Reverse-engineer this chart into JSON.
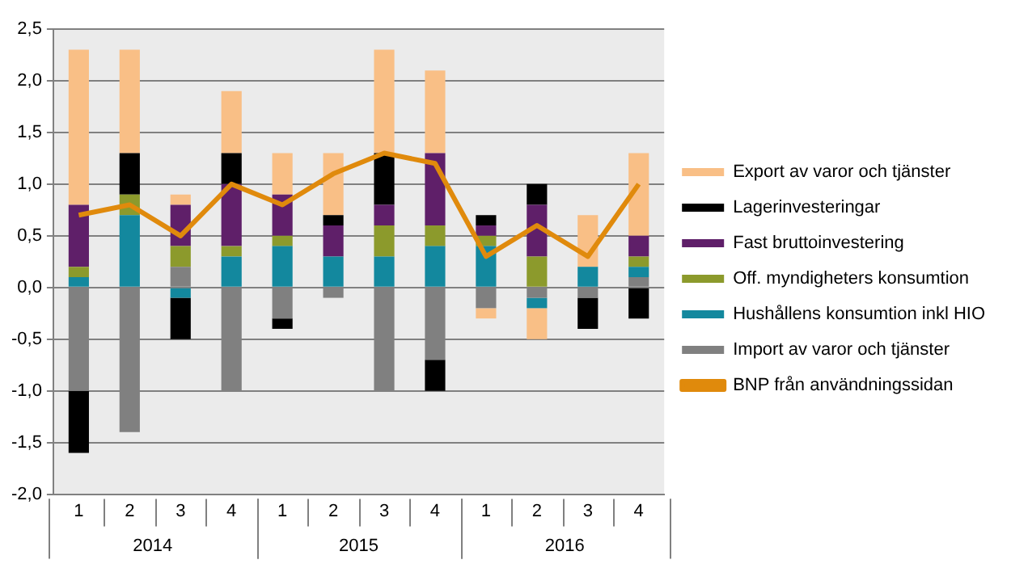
{
  "chart_data": {
    "type": "bar",
    "stacked": true,
    "categories": [
      "1",
      "2",
      "3",
      "4",
      "1",
      "2",
      "3",
      "4",
      "1",
      "2",
      "3",
      "4"
    ],
    "annotations": [
      "2014",
      "2015",
      "2016"
    ],
    "series": [
      {
        "name": "Import av varor och tjänster",
        "color": "#808080",
        "values": [
          -1.0,
          -1.4,
          0.2,
          -1.0,
          -0.3,
          -0.1,
          -1.0,
          -0.7,
          -0.2,
          -0.1,
          -0.1,
          0.1
        ]
      },
      {
        "name": "Hushållens konsumtion inkl HIO",
        "color": "#13889e",
        "values": [
          0.1,
          0.7,
          -0.1,
          0.3,
          0.4,
          0.3,
          0.3,
          0.4,
          0.4,
          -0.1,
          0.2,
          0.1
        ]
      },
      {
        "name": "Off. myndigheters konsumtion",
        "color": "#8c9a2c",
        "values": [
          0.1,
          0.2,
          0.2,
          0.1,
          0.1,
          0,
          0.3,
          0.2,
          0.1,
          0.3,
          0,
          0.1
        ]
      },
      {
        "name": "Fast bruttoinvestering",
        "color": "#5f1f69",
        "values": [
          0.6,
          0,
          0.4,
          0.6,
          0.4,
          0.3,
          0.2,
          0.7,
          0.1,
          0.5,
          0,
          0.2
        ]
      },
      {
        "name": "Lagerinvesteringar",
        "color": "#000000",
        "values": [
          -0.6,
          0.4,
          -0.4,
          0.3,
          -0.1,
          0.1,
          0.5,
          -0.3,
          0.1,
          0.2,
          -0.3,
          -0.3
        ]
      },
      {
        "name": "Export av varor och tjänster",
        "color": "#f9bf86",
        "values": [
          1.5,
          1.0,
          0.1,
          0.6,
          0.4,
          0.6,
          1.0,
          0.8,
          -0.1,
          -0.3,
          0.5,
          0.8
        ]
      },
      {
        "name": "BNP från användningssidan",
        "type": "line",
        "color": "#e08a0c",
        "marker": "none",
        "values": [
          0.7,
          0.8,
          0.5,
          1.0,
          0.8,
          1.1,
          1.3,
          1.2,
          0.3,
          0.6,
          0.3,
          1.0
        ]
      }
    ],
    "ylim": [
      -2.0,
      2.5
    ],
    "yticks": [
      {
        "value": -2.0,
        "label": "-2,0"
      },
      {
        "value": -1.5,
        "label": "-1,5"
      },
      {
        "value": -1.0,
        "label": "-1,0"
      },
      {
        "value": -0.5,
        "label": "-0,5"
      },
      {
        "value": 0,
        "label": "0,0"
      },
      {
        "value": 0.5,
        "label": "0,5"
      },
      {
        "value": 1.0,
        "label": "1,0"
      },
      {
        "value": 1.5,
        "label": "1,5"
      },
      {
        "value": 2.0,
        "label": "2,0"
      },
      {
        "value": 2.5,
        "label": "2,5"
      }
    ],
    "grid": "y",
    "legend": "right"
  }
}
